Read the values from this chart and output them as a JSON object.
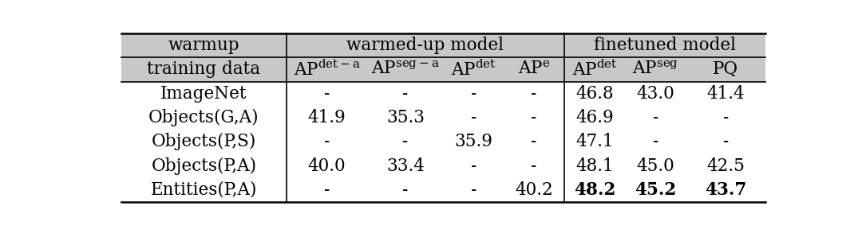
{
  "header_row1": [
    "warmup",
    "warmed-up model",
    "finetuned model"
  ],
  "header_row2": [
    "training data",
    "AP^{det-a}",
    "AP^{seg-a}",
    "AP^{det}",
    "AP^{e}",
    "AP^{det}",
    "AP^{seg}",
    "PQ"
  ],
  "rows": [
    [
      "ImageNet",
      "-",
      "-",
      "-",
      "-",
      "46.8",
      "43.0",
      "41.4"
    ],
    [
      "Objects(G,A)",
      "41.9",
      "35.3",
      "-",
      "-",
      "46.9",
      "-",
      "-"
    ],
    [
      "Objects(P,S)",
      "-",
      "-",
      "35.9",
      "-",
      "47.1",
      "-",
      "-"
    ],
    [
      "Objects(P,A)",
      "40.0",
      "33.4",
      "-",
      "-",
      "48.1",
      "45.0",
      "42.5"
    ],
    [
      "Entities(P,A)",
      "-",
      "-",
      "-",
      "40.2",
      "48.2",
      "45.2",
      "43.7"
    ]
  ],
  "bold_row": 4,
  "bold_cols": [
    5,
    6,
    7
  ],
  "header_bg": "#c8c8c8",
  "figsize": [
    10.8,
    2.93
  ],
  "dpi": 100,
  "font_size": 15.5,
  "header_font_size": 15.5
}
